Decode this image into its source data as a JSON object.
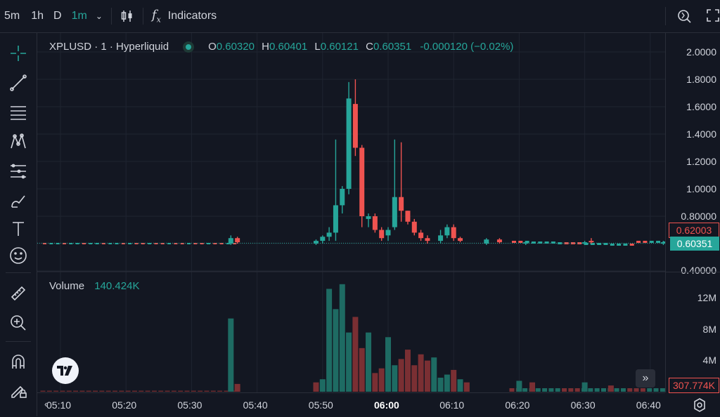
{
  "toolbar": {
    "timeframes": [
      "5m",
      "1h",
      "D",
      "1m"
    ],
    "active_timeframe": "1m",
    "indicators_label": "Indicators"
  },
  "legend": {
    "symbol": "XPLUSD · 1 · Hyperliquid",
    "open_label": "O",
    "open": "0.60320",
    "high_label": "H",
    "high": "0.60401",
    "low_label": "L",
    "low": "0.60121",
    "close_label": "C",
    "close": "0.60351",
    "change": "-0.000120 (−0.02%)"
  },
  "volume": {
    "label": "Volume",
    "value": "140.424K"
  },
  "price_axis": {
    "ticks": [
      "2.0000",
      "1.8000",
      "1.6000",
      "1.4000",
      "1.2000",
      "1.0000",
      "0.80000",
      "0.60351",
      "0.40000"
    ],
    "badge_red": "0.62003",
    "badge_green": "0.60351"
  },
  "volume_axis": {
    "ticks": [
      "12M",
      "8M",
      "4M"
    ],
    "badge": "307.774K"
  },
  "time_axis": {
    "ticks": [
      "05:10",
      "05:20",
      "05:30",
      "05:40",
      "05:50",
      "06:00",
      "06:10",
      "06:20",
      "06:30",
      "06:40"
    ],
    "bold": "06:00"
  },
  "colors": {
    "up": "#26a69a",
    "down": "#ef5350",
    "bg": "#131722"
  },
  "chart_data": {
    "type": "candlestick",
    "symbol": "XPLUSD",
    "interval": "1m",
    "ylim": [
      0.4,
      2.0
    ],
    "candles": [
      {
        "t": "05:36",
        "o": 0.6,
        "h": 0.66,
        "l": 0.59,
        "c": 0.64
      },
      {
        "t": "05:37",
        "o": 0.64,
        "h": 0.65,
        "l": 0.6,
        "c": 0.61
      },
      {
        "t": "05:49",
        "o": 0.6,
        "h": 0.63,
        "l": 0.59,
        "c": 0.62
      },
      {
        "t": "05:50",
        "o": 0.62,
        "h": 0.66,
        "l": 0.6,
        "c": 0.65
      },
      {
        "t": "05:51",
        "o": 0.65,
        "h": 0.72,
        "l": 0.62,
        "c": 0.68
      },
      {
        "t": "05:52",
        "o": 0.68,
        "h": 1.36,
        "l": 0.62,
        "c": 0.88
      },
      {
        "t": "05:53",
        "o": 0.88,
        "h": 1.02,
        "l": 0.82,
        "c": 1.0
      },
      {
        "t": "05:54",
        "o": 1.0,
        "h": 1.78,
        "l": 0.96,
        "c": 1.66
      },
      {
        "t": "05:55",
        "o": 1.62,
        "h": 1.8,
        "l": 1.24,
        "c": 1.3
      },
      {
        "t": "05:56",
        "o": 1.3,
        "h": 1.32,
        "l": 0.72,
        "c": 0.8
      },
      {
        "t": "05:57",
        "o": 0.78,
        "h": 0.82,
        "l": 0.72,
        "c": 0.8
      },
      {
        "t": "05:58",
        "o": 0.8,
        "h": 0.82,
        "l": 0.68,
        "c": 0.7
      },
      {
        "t": "05:59",
        "o": 0.7,
        "h": 0.72,
        "l": 0.62,
        "c": 0.64
      },
      {
        "t": "06:00",
        "o": 0.66,
        "h": 0.72,
        "l": 0.62,
        "c": 0.7
      },
      {
        "t": "06:01",
        "o": 0.72,
        "h": 1.36,
        "l": 0.7,
        "c": 0.94
      },
      {
        "t": "06:02",
        "o": 0.94,
        "h": 1.34,
        "l": 0.76,
        "c": 0.84
      },
      {
        "t": "06:03",
        "o": 0.84,
        "h": 0.84,
        "l": 0.74,
        "c": 0.76
      },
      {
        "t": "06:04",
        "o": 0.76,
        "h": 0.78,
        "l": 0.66,
        "c": 0.68
      },
      {
        "t": "06:05",
        "o": 0.68,
        "h": 0.7,
        "l": 0.62,
        "c": 0.64
      },
      {
        "t": "06:06",
        "o": 0.64,
        "h": 0.66,
        "l": 0.6,
        "c": 0.62
      },
      {
        "t": "06:08",
        "o": 0.62,
        "h": 0.7,
        "l": 0.6,
        "c": 0.66
      },
      {
        "t": "06:09",
        "o": 0.66,
        "h": 0.74,
        "l": 0.64,
        "c": 0.72
      },
      {
        "t": "06:10",
        "o": 0.72,
        "h": 0.74,
        "l": 0.62,
        "c": 0.64
      },
      {
        "t": "06:11",
        "o": 0.64,
        "h": 0.65,
        "l": 0.61,
        "c": 0.62
      },
      {
        "t": "06:15",
        "o": 0.6,
        "h": 0.64,
        "l": 0.59,
        "c": 0.63
      },
      {
        "t": "06:17",
        "o": 0.63,
        "h": 0.64,
        "l": 0.6,
        "c": 0.61
      },
      {
        "t": "06:21",
        "o": 0.6,
        "h": 0.62,
        "l": 0.59,
        "c": 0.61
      },
      {
        "t": "06:30",
        "o": 0.6,
        "h": 0.62,
        "l": 0.59,
        "c": 0.61
      },
      {
        "t": "06:31",
        "o": 0.62,
        "h": 0.64,
        "l": 0.6,
        "c": 0.61
      },
      {
        "t": "06:42",
        "o": 0.6,
        "h": 0.62,
        "l": 0.59,
        "c": 0.61
      }
    ],
    "volume": {
      "unit": "M",
      "bars": [
        {
          "t": "05:36",
          "v": 9.4,
          "dir": "up"
        },
        {
          "t": "05:37",
          "v": 1.0,
          "dir": "down"
        },
        {
          "t": "05:49",
          "v": 1.2,
          "dir": "down"
        },
        {
          "t": "05:50",
          "v": 1.6,
          "dir": "up"
        },
        {
          "t": "05:51",
          "v": 13.2,
          "dir": "up"
        },
        {
          "t": "05:52",
          "v": 10.6,
          "dir": "up"
        },
        {
          "t": "05:53",
          "v": 13.8,
          "dir": "up"
        },
        {
          "t": "05:54",
          "v": 7.6,
          "dir": "up"
        },
        {
          "t": "05:55",
          "v": 9.6,
          "dir": "down"
        },
        {
          "t": "05:56",
          "v": 5.6,
          "dir": "down"
        },
        {
          "t": "05:57",
          "v": 7.6,
          "dir": "up"
        },
        {
          "t": "05:58",
          "v": 2.4,
          "dir": "down"
        },
        {
          "t": "05:59",
          "v": 3.0,
          "dir": "down"
        },
        {
          "t": "06:00",
          "v": 7.0,
          "dir": "up"
        },
        {
          "t": "06:01",
          "v": 3.4,
          "dir": "up"
        },
        {
          "t": "06:02",
          "v": 4.2,
          "dir": "down"
        },
        {
          "t": "06:03",
          "v": 5.4,
          "dir": "down"
        },
        {
          "t": "06:04",
          "v": 3.4,
          "dir": "down"
        },
        {
          "t": "06:05",
          "v": 4.8,
          "dir": "down"
        },
        {
          "t": "06:06",
          "v": 4.0,
          "dir": "down"
        },
        {
          "t": "06:07",
          "v": 4.4,
          "dir": "up"
        },
        {
          "t": "06:08",
          "v": 1.8,
          "dir": "up"
        },
        {
          "t": "06:09",
          "v": 2.2,
          "dir": "up"
        },
        {
          "t": "06:10",
          "v": 2.8,
          "dir": "down"
        },
        {
          "t": "06:11",
          "v": 1.6,
          "dir": "up"
        },
        {
          "t": "06:12",
          "v": 1.2,
          "dir": "down"
        },
        {
          "t": "06:20",
          "v": 1.4,
          "dir": "up"
        },
        {
          "t": "06:22",
          "v": 1.2,
          "dir": "down"
        },
        {
          "t": "06:30",
          "v": 1.2,
          "dir": "up"
        },
        {
          "t": "06:34",
          "v": 0.8,
          "dir": "down"
        }
      ],
      "ylim": [
        0,
        14
      ]
    }
  }
}
